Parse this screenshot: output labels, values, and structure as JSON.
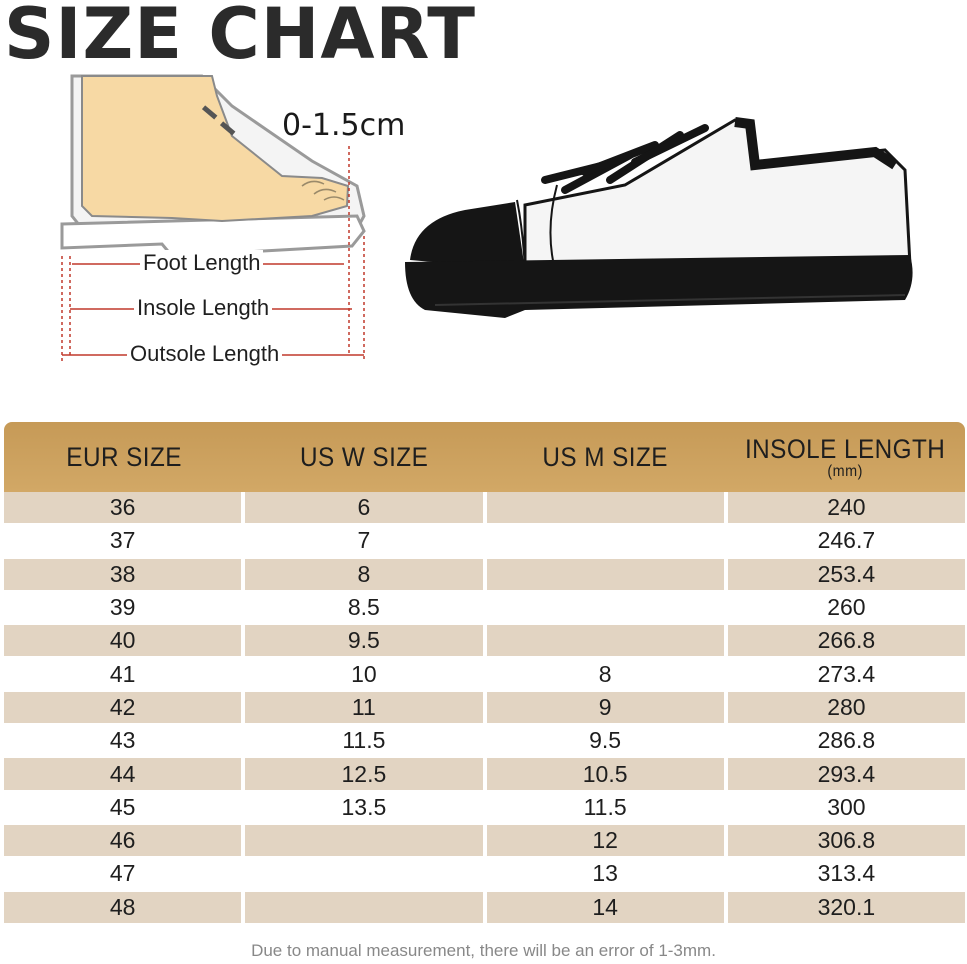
{
  "title": "SIZE CHART",
  "diagram": {
    "tolerance": "0-1.5cm",
    "labels": {
      "foot_length": "Foot Length",
      "insole_length": "Insole Length",
      "outsole_length": "Outsole Length"
    },
    "colors": {
      "measure_line": "#c0392b",
      "skin": "#f7d9a4",
      "shoe_black": "#151515"
    }
  },
  "table": {
    "headers": {
      "eur": "EUR SIZE",
      "us_w": "US W SIZE",
      "us_m": "US M SIZE",
      "insole": "INSOLE  LENGTH",
      "insole_unit": "(mm)"
    },
    "header_color": "#c89c5a",
    "stripe_color": "#e2d4c2",
    "rows": [
      {
        "eur": "36",
        "us_w": "6",
        "us_m": "",
        "insole": "240"
      },
      {
        "eur": "37",
        "us_w": "7",
        "us_m": "",
        "insole": "246.7"
      },
      {
        "eur": "38",
        "us_w": "8",
        "us_m": "",
        "insole": "253.4"
      },
      {
        "eur": "39",
        "us_w": "8.5",
        "us_m": "",
        "insole": "260"
      },
      {
        "eur": "40",
        "us_w": "9.5",
        "us_m": "",
        "insole": "266.8"
      },
      {
        "eur": "41",
        "us_w": "10",
        "us_m": "8",
        "insole": "273.4"
      },
      {
        "eur": "42",
        "us_w": "11",
        "us_m": "9",
        "insole": "280"
      },
      {
        "eur": "43",
        "us_w": "11.5",
        "us_m": "9.5",
        "insole": "286.8"
      },
      {
        "eur": "44",
        "us_w": "12.5",
        "us_m": "10.5",
        "insole": "293.4"
      },
      {
        "eur": "45",
        "us_w": "13.5",
        "us_m": "11.5",
        "insole": "300"
      },
      {
        "eur": "46",
        "us_w": "",
        "us_m": "12",
        "insole": "306.8"
      },
      {
        "eur": "47",
        "us_w": "",
        "us_m": "13",
        "insole": "313.4"
      },
      {
        "eur": "48",
        "us_w": "",
        "us_m": "14",
        "insole": "320.1"
      }
    ]
  },
  "note": "Due to manual measurement, there will be an error of 1-3mm."
}
